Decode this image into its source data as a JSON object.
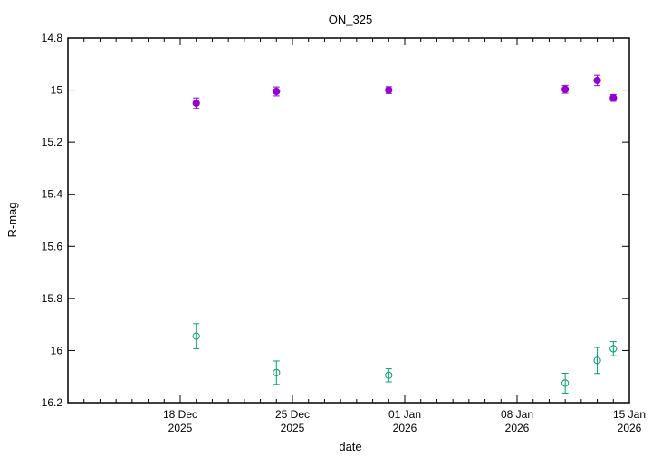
{
  "chart_data": {
    "type": "scatter",
    "title": "ON_325",
    "xlabel": "date",
    "ylabel": "R-mag",
    "y_inverted": true,
    "ylim": [
      16.2,
      14.8
    ],
    "y_ticks": [
      "14.8",
      "15",
      "15.2",
      "15.4",
      "15.6",
      "15.8",
      "16",
      "16.2"
    ],
    "x_range": [
      "2025-12-11",
      "2026-01-15"
    ],
    "x_ticks": [
      {
        "date": "2025-12-18",
        "line1": "18 Dec",
        "line2": "2025"
      },
      {
        "date": "2025-12-25",
        "line1": "25 Dec",
        "line2": "2025"
      },
      {
        "date": "2026-01-01",
        "line1": "01 Jan",
        "line2": "2026"
      },
      {
        "date": "2026-01-08",
        "line1": "08 Jan",
        "line2": "2026"
      },
      {
        "date": "2026-01-15",
        "line1": "15 Jan",
        "line2": "2026"
      }
    ],
    "grid": false,
    "legend": "none",
    "series": [
      {
        "marker": "filled-circle",
        "color": "#9400d3",
        "points": [
          {
            "x": "2025-12-19",
            "y": 15.05,
            "err": 0.02
          },
          {
            "x": "2025-12-24",
            "y": 15.005,
            "err": 0.017
          },
          {
            "x": "2025-12-31",
            "y": 15.0,
            "err": 0.013
          },
          {
            "x": "2026-01-11",
            "y": 14.997,
            "err": 0.015
          },
          {
            "x": "2026-01-13",
            "y": 14.963,
            "err": 0.02
          },
          {
            "x": "2026-01-14",
            "y": 15.03,
            "err": 0.013
          }
        ]
      },
      {
        "marker": "open-circle",
        "color": "#009e73",
        "points": [
          {
            "x": "2025-12-19",
            "y": 15.945,
            "err": 0.048
          },
          {
            "x": "2025-12-24",
            "y": 16.085,
            "err": 0.045
          },
          {
            "x": "2025-12-31",
            "y": 16.095,
            "err": 0.025
          },
          {
            "x": "2026-01-11",
            "y": 16.125,
            "err": 0.038
          },
          {
            "x": "2026-01-13",
            "y": 16.038,
            "err": 0.05
          },
          {
            "x": "2026-01-14",
            "y": 15.993,
            "err": 0.027
          }
        ]
      }
    ]
  }
}
